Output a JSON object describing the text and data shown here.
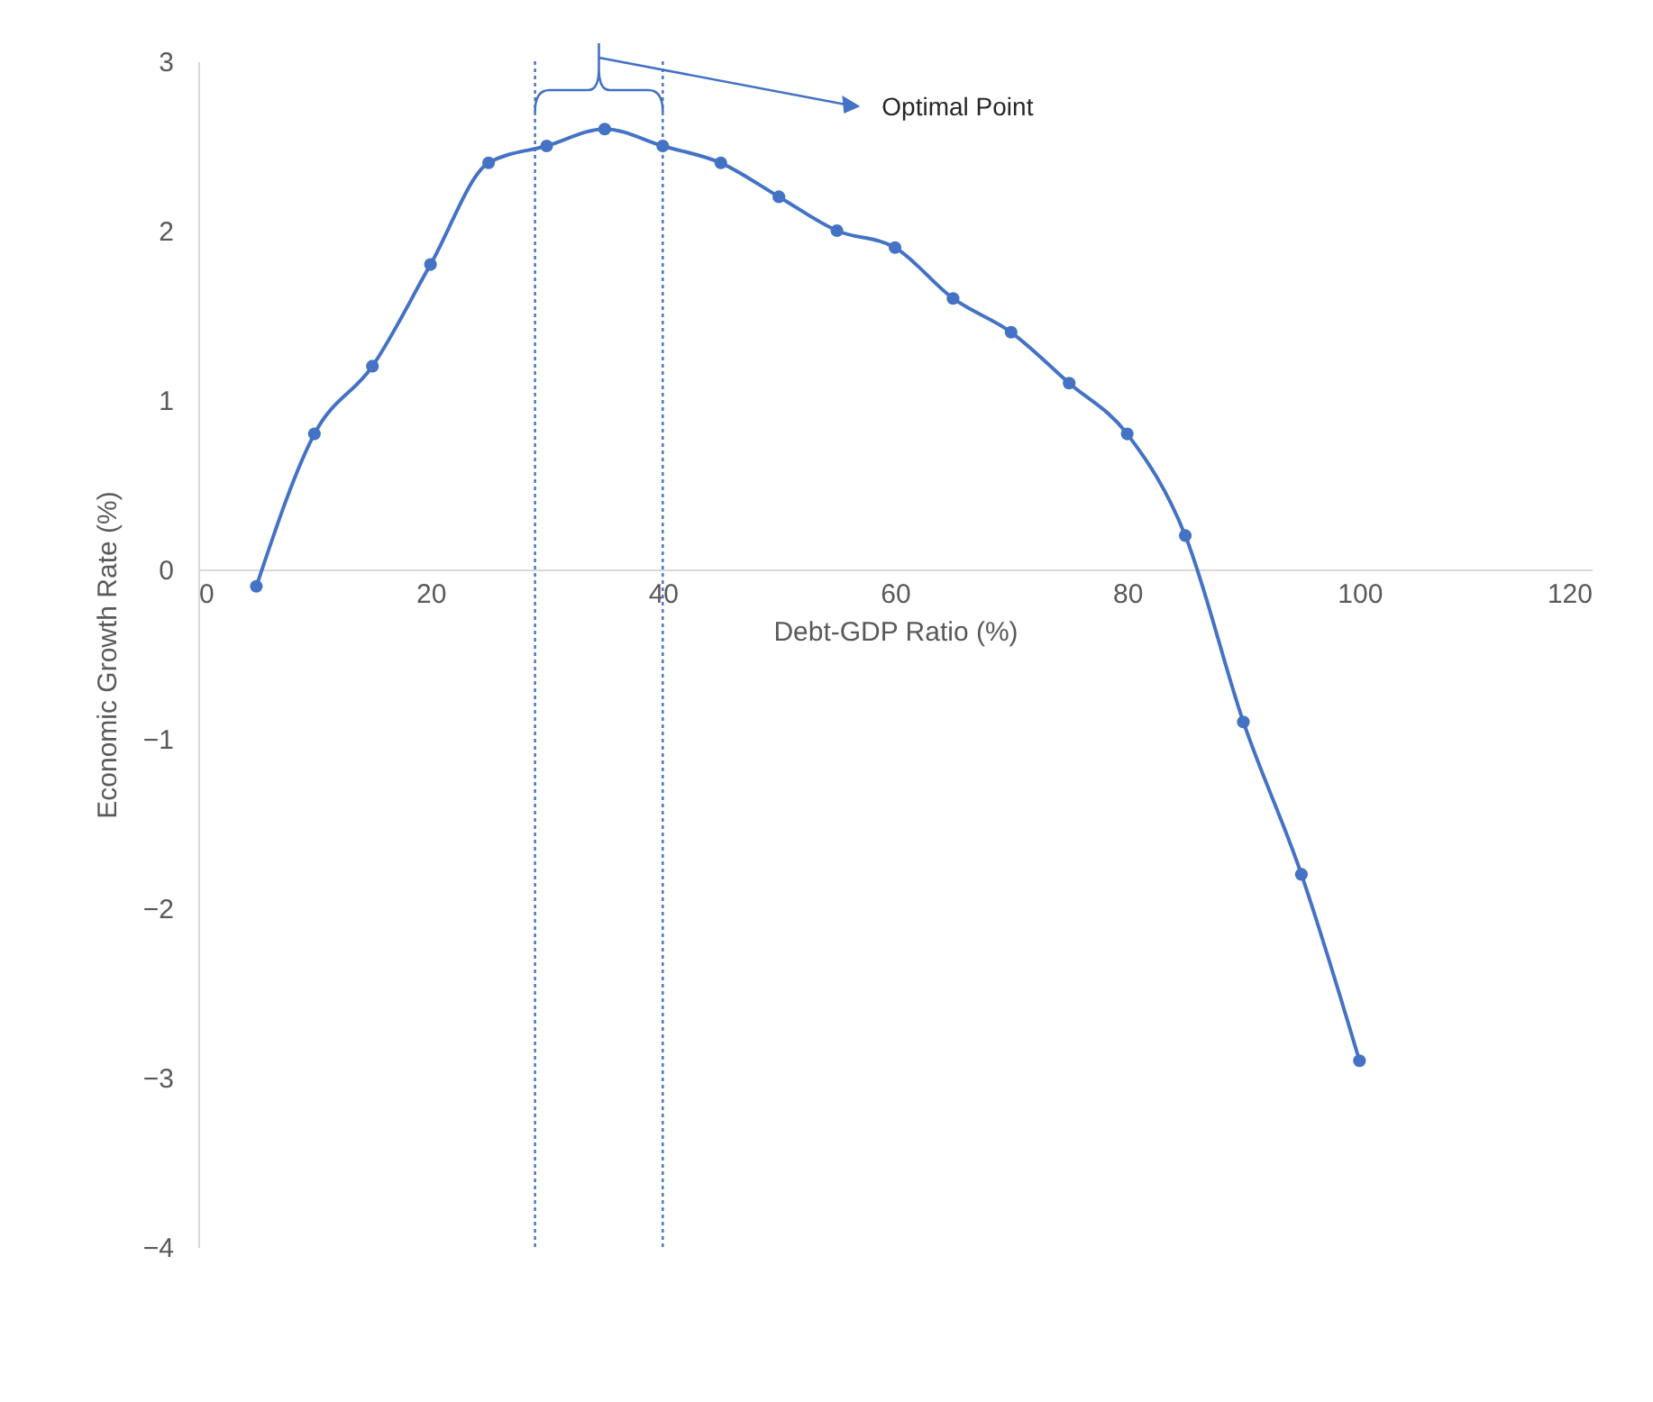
{
  "chart_data": {
    "type": "line",
    "xlabel": "Debt-GDP Ratio (%)",
    "ylabel": "Economic Growth Rate (%)",
    "x": [
      5,
      10,
      15,
      20,
      25,
      30,
      35,
      40,
      45,
      50,
      55,
      60,
      65,
      70,
      75,
      80,
      85,
      90,
      95,
      100
    ],
    "series": [
      {
        "color": "#4472c4",
        "values": [
          -0.1,
          0.8,
          1.2,
          1.8,
          2.4,
          2.5,
          2.6,
          2.5,
          2.4,
          2.2,
          2.0,
          1.9,
          1.6,
          1.4,
          1.1,
          0.8,
          0.2,
          -0.9,
          -1.8,
          -2.9
        ]
      }
    ],
    "xlim": [
      0,
      120
    ],
    "xticks": [
      0,
      20,
      40,
      60,
      80,
      100,
      120
    ],
    "ylim": [
      -4,
      3
    ],
    "yticks": [
      -4,
      -3,
      -2,
      -1,
      0,
      1,
      2,
      3
    ],
    "marker": "circle",
    "grid": false,
    "ref_lines": [
      {
        "axis": "x",
        "value": 29,
        "color": "#4472c4",
        "line_style": "dotted"
      },
      {
        "axis": "x",
        "value": 40,
        "color": "#4472c4",
        "line_style": "dotted"
      }
    ],
    "annotations": [
      "Optimal Point"
    ]
  }
}
